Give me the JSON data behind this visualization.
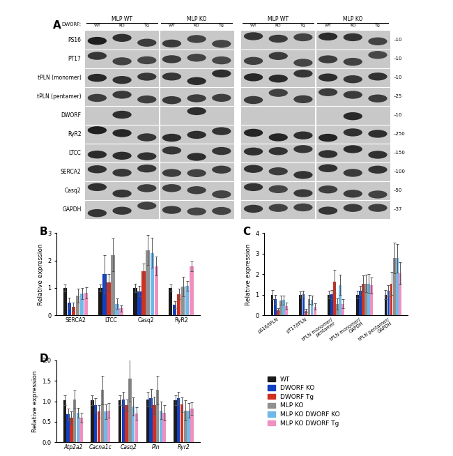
{
  "panel_A": {
    "title": "A",
    "wb_rows": [
      "PS16",
      "PT17",
      "tPLN (monomer)",
      "tPLN (pentamer)",
      "DWORF",
      "RyR2",
      "LTCC",
      "SERCA2",
      "Casq2",
      "GAPDH"
    ],
    "mw_markers": [
      10,
      10,
      10,
      25,
      10,
      250,
      150,
      100,
      50,
      37
    ],
    "header_groups": [
      "MLP WT",
      "MLP KO",
      "MLP WT",
      "MLP KO"
    ],
    "sub_labels": [
      "WT",
      "KO",
      "Tg",
      "WT",
      "KO",
      "Tg",
      "WT",
      "KO",
      "Tg",
      "WT",
      "KO",
      "Tg"
    ],
    "dworf_label": "DWORF:"
  },
  "panel_B": {
    "label": "B",
    "categories": [
      "SERCA2",
      "LTCC",
      "Casq2",
      "RyR2"
    ],
    "ylabel": "Relative expression",
    "ylim": [
      0,
      3
    ],
    "yticks": [
      0,
      1,
      2,
      3
    ],
    "series": {
      "WT": [
        1.0,
        1.0,
        1.0,
        1.0
      ],
      "DWORF KO": [
        0.45,
        1.5,
        0.88,
        0.38
      ],
      "DWORF Tg": [
        0.3,
        1.2,
        1.6,
        0.78
      ],
      "MLP KO": [
        0.72,
        2.2,
        2.38,
        1.05
      ],
      "MLP KO DWORF KO": [
        0.8,
        0.42,
        2.28,
        1.08
      ],
      "MLP KO DWORF Tg": [
        0.82,
        0.25,
        1.8,
        1.78
      ]
    },
    "errors": {
      "WT": [
        0.12,
        0.12,
        0.15,
        0.12
      ],
      "DWORF KO": [
        0.18,
        0.7,
        0.2,
        0.12
      ],
      "DWORF Tg": [
        0.15,
        0.3,
        0.3,
        0.18
      ],
      "MLP KO": [
        0.25,
        0.6,
        0.55,
        0.35
      ],
      "MLP KO DWORF KO": [
        0.2,
        0.2,
        0.55,
        0.18
      ],
      "MLP KO DWORF Tg": [
        0.2,
        0.12,
        0.35,
        0.18
      ]
    }
  },
  "panel_C": {
    "label": "C",
    "categories": [
      "pS16/tPLN",
      "pT17/tPLN",
      "tPLN monomer/\npentamer",
      "tPLN monomer/\nGAPDH",
      "tPLN pentamer/\nGAPDH"
    ],
    "ylabel": "Relative expression",
    "ylim": [
      0,
      4
    ],
    "yticks": [
      0,
      1,
      2,
      3,
      4
    ],
    "series": {
      "WT": [
        1.0,
        1.0,
        1.0,
        1.0,
        1.0
      ],
      "DWORF KO": [
        0.78,
        1.02,
        1.02,
        1.2,
        1.2
      ],
      "DWORF Tg": [
        0.25,
        0.22,
        1.65,
        1.55,
        1.55
      ],
      "MLP KO": [
        0.72,
        0.78,
        0.55,
        1.55,
        2.8
      ],
      "MLP KO DWORF KO": [
        0.75,
        0.75,
        1.48,
        1.55,
        2.78
      ],
      "MLP KO DWORF Tg": [
        0.45,
        0.42,
        0.55,
        1.45,
        2.05
      ]
    },
    "errors": {
      "WT": [
        0.22,
        0.15,
        0.18,
        0.18,
        0.22
      ],
      "DWORF KO": [
        0.22,
        0.18,
        0.22,
        0.22,
        0.28
      ],
      "DWORF Tg": [
        0.08,
        0.08,
        0.55,
        0.38,
        0.55
      ],
      "MLP KO": [
        0.22,
        0.22,
        0.28,
        0.42,
        0.75
      ],
      "MLP KO DWORF KO": [
        0.22,
        0.22,
        0.48,
        0.45,
        0.7
      ],
      "MLP KO DWORF Tg": [
        0.15,
        0.15,
        0.22,
        0.38,
        0.55
      ]
    }
  },
  "panel_D": {
    "label": "D",
    "categories": [
      "Atp2a2",
      "Cacna1c",
      "Casq2",
      "Pln",
      "Ryr2"
    ],
    "ylabel": "Relative expression",
    "ylim": [
      0,
      2.0
    ],
    "yticks": [
      0,
      0.5,
      1.0,
      1.5,
      2.0
    ],
    "series": {
      "WT": [
        1.02,
        1.02,
        1.02,
        1.05,
        1.02
      ],
      "DWORF KO": [
        0.68,
        0.9,
        1.05,
        1.08,
        1.08
      ],
      "DWORF Tg": [
        0.6,
        0.75,
        0.9,
        0.9,
        0.92
      ],
      "MLP KO": [
        1.05,
        1.28,
        1.55,
        1.28,
        0.78
      ],
      "MLP KO DWORF KO": [
        0.72,
        0.75,
        0.88,
        0.78,
        0.78
      ],
      "MLP KO DWORF Tg": [
        0.6,
        0.78,
        0.7,
        0.72,
        0.82
      ]
    },
    "errors": {
      "WT": [
        0.12,
        0.12,
        0.12,
        0.18,
        0.12
      ],
      "DWORF KO": [
        0.15,
        0.18,
        0.18,
        0.22,
        0.15
      ],
      "DWORF Tg": [
        0.15,
        0.15,
        0.15,
        0.22,
        0.18
      ],
      "MLP KO": [
        0.22,
        0.35,
        0.55,
        0.35,
        0.25
      ],
      "MLP KO DWORF KO": [
        0.12,
        0.18,
        0.22,
        0.22,
        0.18
      ],
      "MLP KO DWORF Tg": [
        0.12,
        0.18,
        0.15,
        0.18,
        0.15
      ]
    }
  },
  "colors": {
    "WT": "#1a1a1a",
    "DWORF KO": "#1040c0",
    "DWORF Tg": "#d03020",
    "MLP KO": "#909090",
    "MLP KO DWORF KO": "#70b8e8",
    "MLP KO DWORF Tg": "#f090c0"
  },
  "legend_order": [
    "WT",
    "DWORF KO",
    "DWORF Tg",
    "MLP KO",
    "MLP KO DWORF KO",
    "MLP KO DWORF Tg"
  ]
}
